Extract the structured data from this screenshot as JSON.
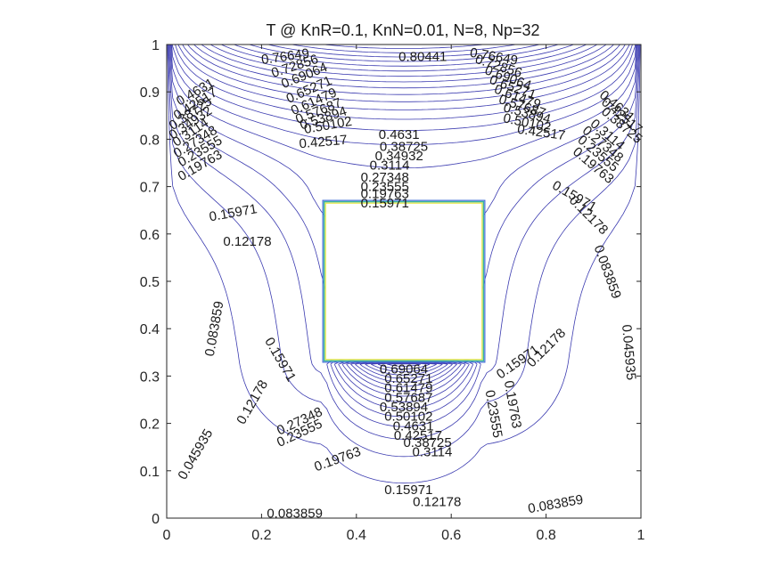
{
  "chart_data": {
    "type": "contour",
    "title": "T @ KnR=0.1, KnN=0.01, N=8, Np=32",
    "xlabel": "",
    "ylabel": "",
    "xlim": [
      0,
      1
    ],
    "ylim": [
      0,
      1
    ],
    "xticks": [
      0,
      0.2,
      0.4,
      0.6,
      0.8,
      1
    ],
    "xtick_labels": [
      "0",
      "0.2",
      "0.4",
      "0.6",
      "0.8",
      "1"
    ],
    "yticks": [
      0,
      0.1,
      0.2,
      0.3,
      0.4,
      0.5,
      0.6,
      0.7,
      0.8,
      0.9,
      1
    ],
    "ytick_labels": [
      "0",
      "0.1",
      "0.2",
      "0.3",
      "0.4",
      "0.5",
      "0.6",
      "0.7",
      "0.8",
      "0.9",
      "1"
    ],
    "grid": false,
    "legend": "none",
    "line_color": "#3b3bb0",
    "inner_square": {
      "x": [
        0.333,
        0.667
      ],
      "y": [
        0.333,
        0.667
      ]
    },
    "inner_square_colors": [
      "#e8e84a",
      "#38b6a0",
      "#4a74d8"
    ],
    "contour_levels": [
      0.045935,
      0.083859,
      0.12178,
      0.15971,
      0.19763,
      0.23555,
      0.27348,
      0.3114,
      0.34932,
      0.38725,
      0.42517,
      0.4631,
      0.50102,
      0.53894,
      0.57687,
      0.61479,
      0.65271,
      0.69064,
      0.72856,
      0.76649,
      0.80441
    ],
    "contour_labels": [
      {
        "text": "0.80441",
        "x": 0.54,
        "y": 0.975,
        "rot": 0
      },
      {
        "text": "0.76649",
        "x": 0.25,
        "y": 0.975,
        "rot": 8
      },
      {
        "text": "0.72856",
        "x": 0.27,
        "y": 0.955,
        "rot": 18
      },
      {
        "text": "0.69064",
        "x": 0.29,
        "y": 0.935,
        "rot": 22
      },
      {
        "text": "0.65271",
        "x": 0.3,
        "y": 0.905,
        "rot": 24
      },
      {
        "text": "0.61479",
        "x": 0.31,
        "y": 0.88,
        "rot": 24
      },
      {
        "text": "0.57687",
        "x": 0.32,
        "y": 0.86,
        "rot": 22
      },
      {
        "text": "0.53894",
        "x": 0.33,
        "y": 0.845,
        "rot": 18
      },
      {
        "text": "0.50102",
        "x": 0.34,
        "y": 0.83,
        "rot": 10
      },
      {
        "text": "0.42517",
        "x": 0.33,
        "y": 0.795,
        "rot": 5
      },
      {
        "text": "0.4631",
        "x": 0.49,
        "y": 0.81,
        "rot": 0
      },
      {
        "text": "0.38725",
        "x": 0.5,
        "y": 0.785,
        "rot": 0
      },
      {
        "text": "0.34932",
        "x": 0.49,
        "y": 0.765,
        "rot": 0
      },
      {
        "text": "0.3114",
        "x": 0.47,
        "y": 0.745,
        "rot": 0
      },
      {
        "text": "0.27348",
        "x": 0.46,
        "y": 0.72,
        "rot": 0
      },
      {
        "text": "0.23555",
        "x": 0.46,
        "y": 0.7,
        "rot": 0
      },
      {
        "text": "0.19763",
        "x": 0.46,
        "y": 0.685,
        "rot": 0
      },
      {
        "text": "0.15971",
        "x": 0.46,
        "y": 0.665,
        "rot": 0
      },
      {
        "text": "0.76649",
        "x": 0.69,
        "y": 0.975,
        "rot": -10
      },
      {
        "text": "0.72856",
        "x": 0.7,
        "y": 0.955,
        "rot": -18
      },
      {
        "text": "0.69064",
        "x": 0.72,
        "y": 0.93,
        "rot": -20
      },
      {
        "text": "0.65271",
        "x": 0.73,
        "y": 0.91,
        "rot": -20
      },
      {
        "text": "0.61479",
        "x": 0.74,
        "y": 0.89,
        "rot": -20
      },
      {
        "text": "0.57687",
        "x": 0.75,
        "y": 0.87,
        "rot": -18
      },
      {
        "text": "0.53894",
        "x": 0.76,
        "y": 0.855,
        "rot": -15
      },
      {
        "text": "0.50102",
        "x": 0.76,
        "y": 0.835,
        "rot": -12
      },
      {
        "text": "0.42517",
        "x": 0.79,
        "y": 0.815,
        "rot": -8
      },
      {
        "text": "0.4631",
        "x": 0.06,
        "y": 0.9,
        "rot": 30
      },
      {
        "text": "0.42517",
        "x": 0.06,
        "y": 0.875,
        "rot": 32
      },
      {
        "text": "0.38725",
        "x": 0.05,
        "y": 0.855,
        "rot": 34
      },
      {
        "text": "0.34932",
        "x": 0.05,
        "y": 0.835,
        "rot": 34
      },
      {
        "text": "0.3114",
        "x": 0.05,
        "y": 0.815,
        "rot": 34
      },
      {
        "text": "0.27348",
        "x": 0.06,
        "y": 0.795,
        "rot": 32
      },
      {
        "text": "0.23555",
        "x": 0.07,
        "y": 0.775,
        "rot": 30
      },
      {
        "text": "0.19763",
        "x": 0.07,
        "y": 0.745,
        "rot": 30
      },
      {
        "text": "0.4631",
        "x": 0.95,
        "y": 0.87,
        "rot": -40
      },
      {
        "text": "0.42517",
        "x": 0.96,
        "y": 0.85,
        "rot": -40
      },
      {
        "text": "0.38725",
        "x": 0.96,
        "y": 0.83,
        "rot": -40
      },
      {
        "text": "0.3114",
        "x": 0.93,
        "y": 0.81,
        "rot": -40
      },
      {
        "text": "0.27348",
        "x": 0.92,
        "y": 0.79,
        "rot": -40
      },
      {
        "text": "0.23555",
        "x": 0.91,
        "y": 0.77,
        "rot": -40
      },
      {
        "text": "0.19763",
        "x": 0.9,
        "y": 0.745,
        "rot": -40
      },
      {
        "text": "0.15971",
        "x": 0.14,
        "y": 0.645,
        "rot": 10
      },
      {
        "text": "0.12178",
        "x": 0.17,
        "y": 0.585,
        "rot": 0
      },
      {
        "text": "0.15971",
        "x": 0.86,
        "y": 0.68,
        "rot": -30
      },
      {
        "text": "0.12178",
        "x": 0.89,
        "y": 0.64,
        "rot": -45
      },
      {
        "text": "0.083859",
        "x": 0.1,
        "y": 0.4,
        "rot": 80
      },
      {
        "text": "0.083859",
        "x": 0.93,
        "y": 0.52,
        "rot": -70
      },
      {
        "text": "0.045935",
        "x": 0.06,
        "y": 0.135,
        "rot": 60
      },
      {
        "text": "0.045935",
        "x": 0.975,
        "y": 0.35,
        "rot": -85
      },
      {
        "text": "0.15971",
        "x": 0.24,
        "y": 0.335,
        "rot": -60
      },
      {
        "text": "0.12178",
        "x": 0.18,
        "y": 0.245,
        "rot": 60
      },
      {
        "text": "0.27348",
        "x": 0.28,
        "y": 0.205,
        "rot": 25
      },
      {
        "text": "0.23555",
        "x": 0.28,
        "y": 0.18,
        "rot": 25
      },
      {
        "text": "0.19763",
        "x": 0.36,
        "y": 0.125,
        "rot": 20
      },
      {
        "text": "0.15971",
        "x": 0.51,
        "y": 0.06,
        "rot": 0
      },
      {
        "text": "0.12178",
        "x": 0.57,
        "y": 0.035,
        "rot": 0
      },
      {
        "text": "0.083859",
        "x": 0.27,
        "y": 0.01,
        "rot": 0
      },
      {
        "text": "0.083859",
        "x": 0.82,
        "y": 0.03,
        "rot": 10
      },
      {
        "text": "0.12178",
        "x": 0.8,
        "y": 0.36,
        "rot": 45
      },
      {
        "text": "0.15971",
        "x": 0.74,
        "y": 0.33,
        "rot": 35
      },
      {
        "text": "0.19763",
        "x": 0.73,
        "y": 0.24,
        "rot": -80
      },
      {
        "text": "0.23555",
        "x": 0.69,
        "y": 0.22,
        "rot": -80
      },
      {
        "text": "0.69064",
        "x": 0.5,
        "y": 0.315,
        "rot": 0
      },
      {
        "text": "0.65271",
        "x": 0.51,
        "y": 0.295,
        "rot": 0
      },
      {
        "text": "0.61479",
        "x": 0.51,
        "y": 0.275,
        "rot": 0
      },
      {
        "text": "0.57687",
        "x": 0.51,
        "y": 0.255,
        "rot": 0
      },
      {
        "text": "0.53894",
        "x": 0.5,
        "y": 0.235,
        "rot": 0
      },
      {
        "text": "0.50102",
        "x": 0.51,
        "y": 0.215,
        "rot": 0
      },
      {
        "text": "0.4631",
        "x": 0.52,
        "y": 0.195,
        "rot": 0
      },
      {
        "text": "0.42517",
        "x": 0.53,
        "y": 0.175,
        "rot": 0
      },
      {
        "text": "0.38725",
        "x": 0.55,
        "y": 0.16,
        "rot": 0
      },
      {
        "text": "0.3114",
        "x": 0.56,
        "y": 0.14,
        "rot": 0
      }
    ]
  }
}
